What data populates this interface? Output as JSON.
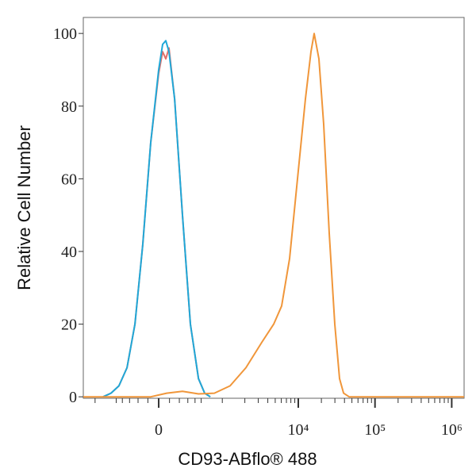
{
  "chart_data": {
    "type": "histogram-overlay",
    "xlabel": "CD93-ABflo® 488",
    "ylabel": "Relative Cell Number",
    "xscale": "arcsinh",
    "arcsinh_cofactor": 303,
    "xlim": [
      -1440,
      1450000
    ],
    "xticks": [
      {
        "value": 0,
        "label": "0"
      },
      {
        "value": 10000,
        "label": "10⁴"
      },
      {
        "value": 100000,
        "label": "10⁵"
      },
      {
        "value": 1000000,
        "label": "10⁶"
      }
    ],
    "minor_xticks": [
      -1000,
      -500,
      -400,
      -300,
      -200,
      -100,
      100,
      200,
      300,
      400,
      500,
      1000,
      2000,
      3000,
      4000,
      5000,
      6000,
      7000,
      8000,
      9000,
      20000,
      30000,
      40000,
      50000,
      60000,
      70000,
      80000,
      90000,
      200000,
      300000,
      400000,
      500000,
      600000,
      700000,
      800000,
      900000
    ],
    "ylim": [
      -0.4,
      104.4
    ],
    "yticks": [
      0,
      20,
      40,
      60,
      80,
      100
    ],
    "series": [
      {
        "color": "#e0706a",
        "x": [
          -776,
          -598,
          -454,
          -334,
          -235,
          -150,
          -73,
          0,
          36,
          65,
          95,
          150,
          235,
          334,
          454,
          564,
          682
        ],
        "values": [
          0,
          1,
          3,
          8,
          20,
          42,
          70,
          89,
          95,
          93,
          96,
          82,
          50,
          20,
          5,
          1,
          0
        ]
      },
      {
        "color": "#1fa8d8",
        "x": [
          -776,
          -598,
          -454,
          -334,
          -235,
          -150,
          -73,
          0,
          36,
          65,
          95,
          150,
          235,
          334,
          454,
          564,
          682
        ],
        "values": [
          0,
          1,
          3,
          8,
          20,
          42,
          70,
          90,
          97,
          98,
          95,
          82,
          50,
          20,
          5,
          1,
          0
        ]
      },
      {
        "color": "#f0963a",
        "x": [
          -1440,
          -73,
          73,
          235,
          454,
          776,
          1273,
          2066,
          3339,
          4778,
          6060,
          7700,
          9760,
          12390,
          14630,
          16110,
          18580,
          21440,
          25340,
          29930,
          34530,
          38940,
          46000,
          1450000
        ],
        "values": [
          0,
          0,
          1,
          1.5,
          0.8,
          1,
          3,
          8,
          15,
          20,
          25,
          38,
          60,
          82,
          95,
          100,
          93,
          75,
          45,
          20,
          5,
          1,
          0,
          0
        ]
      }
    ]
  }
}
